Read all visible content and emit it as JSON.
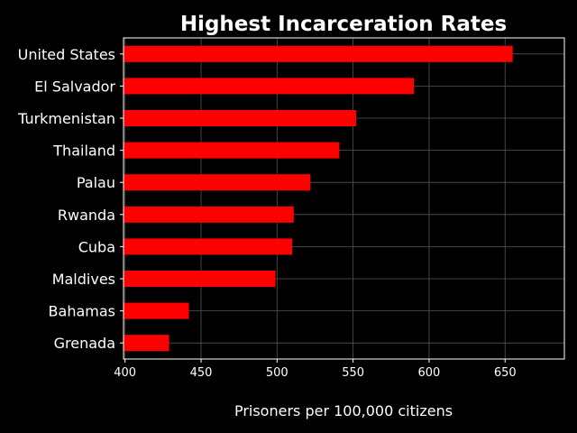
{
  "chart_data": {
    "type": "bar",
    "orientation": "horizontal",
    "title": "Highest Incarceration Rates",
    "xlabel": "Prisoners per 100,000 citizens",
    "ylabel": "",
    "categories": [
      "United States",
      "El Salvador",
      "Turkmenistan",
      "Thailand",
      "Palau",
      "Rwanda",
      "Cuba",
      "Maldives",
      "Bahamas",
      "Grenada"
    ],
    "values": [
      655,
      590,
      552,
      541,
      522,
      511,
      510,
      499,
      442,
      429
    ],
    "xlim": [
      399,
      689
    ],
    "xticks": [
      400,
      450,
      500,
      550,
      600,
      650
    ],
    "grid": true
  },
  "colors": {
    "background": "#000000",
    "bar": "#ff0000",
    "text": "#ffffff",
    "grid": "#555555",
    "axes": "#ffffff"
  }
}
